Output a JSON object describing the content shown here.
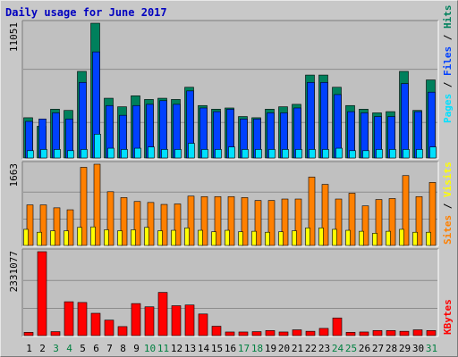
{
  "title": "Daily usage for June 2017",
  "colors": {
    "frame_bg": "#c8c8c8",
    "panel_bg": "#c0c0c0",
    "grid": "#8c8c8c",
    "hits": "#00805c",
    "files": "#0040ff",
    "pages": "#00e0ff",
    "visits": "#ffff00",
    "sites": "#ff8000",
    "kbytes": "#ff0000",
    "title": "#0000c0",
    "axis_text": "#000000",
    "weekend_text": "#008040"
  },
  "chart_data": [
    {
      "type": "bar",
      "panel": "pages-files-hits",
      "ymax_label": "11051",
      "ylim": [
        0,
        11051
      ],
      "grid": true,
      "categories": [
        "1",
        "2",
        "3",
        "4",
        "5",
        "6",
        "7",
        "8",
        "9",
        "10",
        "11",
        "12",
        "13",
        "14",
        "15",
        "16",
        "17",
        "18",
        "19",
        "20",
        "21",
        "22",
        "23",
        "24",
        "25",
        "26",
        "27",
        "28",
        "29",
        "30",
        "31"
      ],
      "series": [
        {
          "name": "Hits",
          "color": "#00805c",
          "values": [
            3300,
            2600,
            4000,
            3900,
            7100,
            11051,
            4900,
            4200,
            5100,
            4800,
            4900,
            4800,
            5800,
            4300,
            4000,
            4100,
            3400,
            3300,
            4000,
            4200,
            4400,
            6800,
            6800,
            5800,
            4300,
            4000,
            3700,
            3800,
            7100,
            3900,
            6400
          ]
        },
        {
          "name": "Files",
          "color": "#0040ff",
          "values": [
            3000,
            3200,
            3700,
            3200,
            6200,
            8700,
            4300,
            3500,
            4300,
            4400,
            4700,
            4400,
            5500,
            4100,
            3800,
            4000,
            3200,
            3200,
            3700,
            3700,
            4100,
            6200,
            6200,
            5200,
            3800,
            3700,
            3400,
            3400,
            6100,
            3800,
            5400
          ]
        },
        {
          "name": "Pages",
          "color": "#00e0ff",
          "values": [
            600,
            700,
            700,
            600,
            700,
            1950,
            800,
            700,
            800,
            900,
            700,
            700,
            1200,
            700,
            700,
            900,
            700,
            700,
            700,
            700,
            700,
            700,
            700,
            800,
            600,
            600,
            700,
            700,
            700,
            700,
            900
          ]
        }
      ]
    },
    {
      "type": "bar",
      "panel": "visits-sites",
      "ymax_label": "1663",
      "ylim": [
        0,
        1663
      ],
      "grid": true,
      "categories": [
        "1",
        "2",
        "3",
        "4",
        "5",
        "6",
        "7",
        "8",
        "9",
        "10",
        "11",
        "12",
        "13",
        "14",
        "15",
        "16",
        "17",
        "18",
        "19",
        "20",
        "21",
        "22",
        "23",
        "24",
        "25",
        "26",
        "27",
        "28",
        "29",
        "30",
        "31"
      ],
      "series": [
        {
          "name": "Sites",
          "color": "#ff8000",
          "values": [
            830,
            830,
            770,
            730,
            1600,
            1663,
            1100,
            980,
            900,
            880,
            840,
            850,
            1010,
            1000,
            1000,
            1000,
            980,
            920,
            920,
            950,
            950,
            1400,
            1250,
            950,
            1070,
            810,
            940,
            960,
            1430,
            1000,
            1290
          ]
        },
        {
          "name": "Visits",
          "color": "#ffff00",
          "values": [
            330,
            270,
            300,
            300,
            370,
            380,
            320,
            300,
            320,
            370,
            300,
            310,
            360,
            310,
            280,
            310,
            280,
            290,
            270,
            280,
            300,
            360,
            360,
            330,
            310,
            290,
            250,
            290,
            330,
            270,
            270
          ]
        }
      ]
    },
    {
      "type": "bar",
      "panel": "kbytes",
      "ymax_label": "2331077",
      "ylim": [
        0,
        2331077
      ],
      "grid": true,
      "categories": [
        "1",
        "2",
        "3",
        "4",
        "5",
        "6",
        "7",
        "8",
        "9",
        "10",
        "11",
        "12",
        "13",
        "14",
        "15",
        "16",
        "17",
        "18",
        "19",
        "20",
        "21",
        "22",
        "23",
        "24",
        "25",
        "26",
        "27",
        "28",
        "29",
        "30",
        "31"
      ],
      "series": [
        {
          "name": "KBytes",
          "color": "#ff0000",
          "values": [
            90000,
            2331077,
            110000,
            940000,
            920000,
            620000,
            430000,
            250000,
            890000,
            800000,
            1200000,
            830000,
            850000,
            600000,
            260000,
            100000,
            100000,
            110000,
            140000,
            100000,
            160000,
            120000,
            200000,
            490000,
            90000,
            100000,
            140000,
            140000,
            120000,
            160000,
            140000
          ]
        }
      ]
    }
  ],
  "axis": {
    "days": [
      "1",
      "2",
      "3",
      "4",
      "5",
      "6",
      "7",
      "8",
      "9",
      "10",
      "11",
      "12",
      "13",
      "14",
      "15",
      "16",
      "17",
      "18",
      "19",
      "20",
      "21",
      "22",
      "23",
      "24",
      "25",
      "26",
      "27",
      "28",
      "29",
      "30",
      "31"
    ],
    "weekend_days": [
      "3",
      "4",
      "10",
      "11",
      "17",
      "18",
      "24",
      "25",
      "31"
    ]
  },
  "legends": {
    "panel1": [
      {
        "text": "Pages",
        "color": "#00e0ff"
      },
      {
        "text": " / ",
        "color": "#000000"
      },
      {
        "text": "Files",
        "color": "#0040ff"
      },
      {
        "text": " / ",
        "color": "#000000"
      },
      {
        "text": "Hits",
        "color": "#00805c"
      }
    ],
    "panel2": [
      {
        "text": "Sites",
        "color": "#ff8000"
      },
      {
        "text": " / ",
        "color": "#000000"
      },
      {
        "text": "Visits",
        "color": "#ffff00"
      }
    ],
    "panel3": [
      {
        "text": "KBytes",
        "color": "#ff0000"
      }
    ]
  }
}
